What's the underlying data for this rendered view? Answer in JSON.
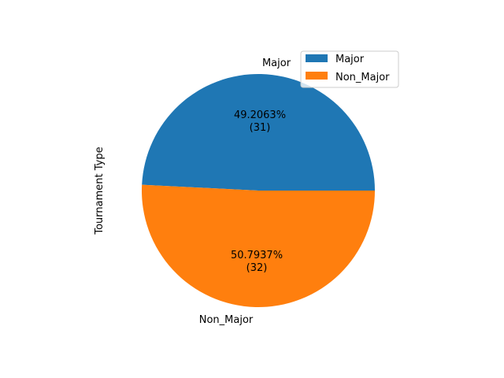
{
  "chart_data": {
    "type": "pie",
    "ylabel": "Tournament Type",
    "slices": [
      {
        "label": "Major",
        "value": 31,
        "percent_text": "49.2063%",
        "count_text": "(31)",
        "color": "#1f77b4"
      },
      {
        "label": "Non_Major",
        "value": 32,
        "percent_text": "50.7937%",
        "count_text": "(32)",
        "color": "#ff7f0e"
      }
    ],
    "legend": {
      "placement": "top-right",
      "entries": [
        "Major",
        "Non_Major"
      ]
    }
  }
}
